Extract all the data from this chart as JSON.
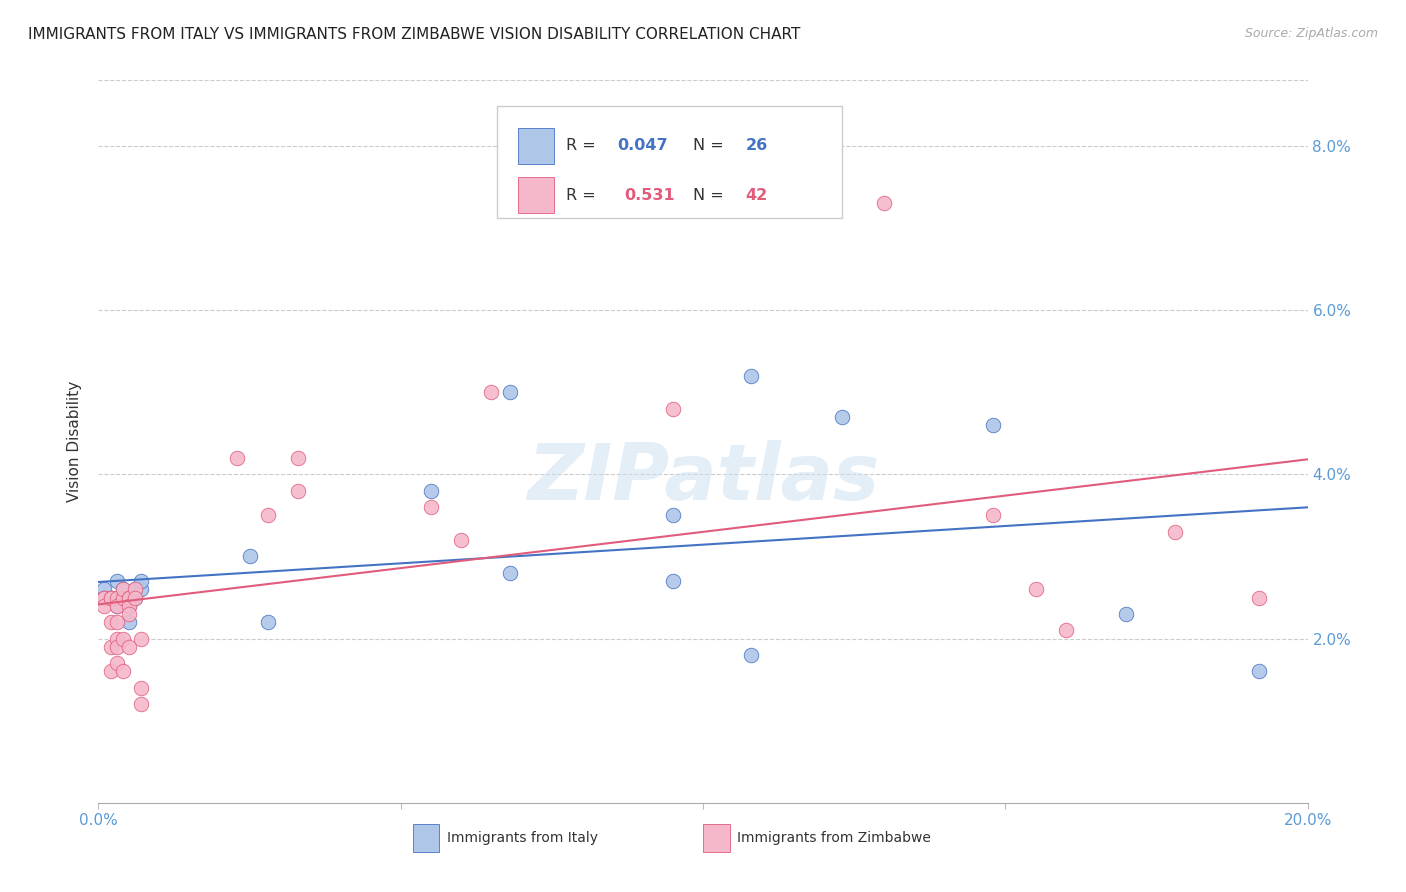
{
  "title": "IMMIGRANTS FROM ITALY VS IMMIGRANTS FROM ZIMBABWE VISION DISABILITY CORRELATION CHART",
  "source": "Source: ZipAtlas.com",
  "ylabel": "Vision Disability",
  "xlim": [
    0.0,
    0.2
  ],
  "ylim": [
    0.0,
    0.088
  ],
  "italy_R": 0.047,
  "italy_N": 26,
  "zimbabwe_R": 0.531,
  "zimbabwe_N": 42,
  "italy_color": "#aec6e8",
  "zimbabwe_color": "#f5b8cb",
  "italy_line_color": "#4472c4",
  "zimbabwe_line_color": "#e05c7a",
  "legend_italy_label": "Immigrants from Italy",
  "legend_zimbabwe_label": "Immigrants from Zimbabwe",
  "italy_x": [
    0.001,
    0.001,
    0.002,
    0.003,
    0.003,
    0.004,
    0.004,
    0.005,
    0.005,
    0.006,
    0.006,
    0.007,
    0.007,
    0.025,
    0.028,
    0.055,
    0.068,
    0.068,
    0.095,
    0.095,
    0.108,
    0.108,
    0.123,
    0.148,
    0.17,
    0.192
  ],
  "italy_y": [
    0.026,
    0.025,
    0.025,
    0.027,
    0.024,
    0.026,
    0.025,
    0.024,
    0.022,
    0.026,
    0.025,
    0.026,
    0.027,
    0.03,
    0.022,
    0.038,
    0.05,
    0.028,
    0.035,
    0.027,
    0.052,
    0.018,
    0.047,
    0.046,
    0.023,
    0.016
  ],
  "zimbabwe_x": [
    0.001,
    0.001,
    0.001,
    0.002,
    0.002,
    0.002,
    0.002,
    0.002,
    0.003,
    0.003,
    0.003,
    0.003,
    0.003,
    0.003,
    0.004,
    0.004,
    0.004,
    0.004,
    0.005,
    0.005,
    0.005,
    0.005,
    0.005,
    0.006,
    0.006,
    0.007,
    0.007,
    0.007,
    0.023,
    0.028,
    0.033,
    0.033,
    0.055,
    0.06,
    0.065,
    0.095,
    0.13,
    0.148,
    0.155,
    0.16,
    0.178,
    0.192
  ],
  "zimbabwe_y": [
    0.025,
    0.025,
    0.024,
    0.025,
    0.025,
    0.022,
    0.019,
    0.016,
    0.025,
    0.024,
    0.022,
    0.02,
    0.019,
    0.017,
    0.025,
    0.026,
    0.02,
    0.016,
    0.025,
    0.025,
    0.024,
    0.023,
    0.019,
    0.026,
    0.025,
    0.02,
    0.014,
    0.012,
    0.042,
    0.035,
    0.042,
    0.038,
    0.036,
    0.032,
    0.05,
    0.048,
    0.073,
    0.035,
    0.026,
    0.021,
    0.033,
    0.025
  ],
  "watermark": "ZIPatlas",
  "background_color": "#ffffff",
  "title_fontsize": 11,
  "tick_label_color": "#5b9bd5"
}
